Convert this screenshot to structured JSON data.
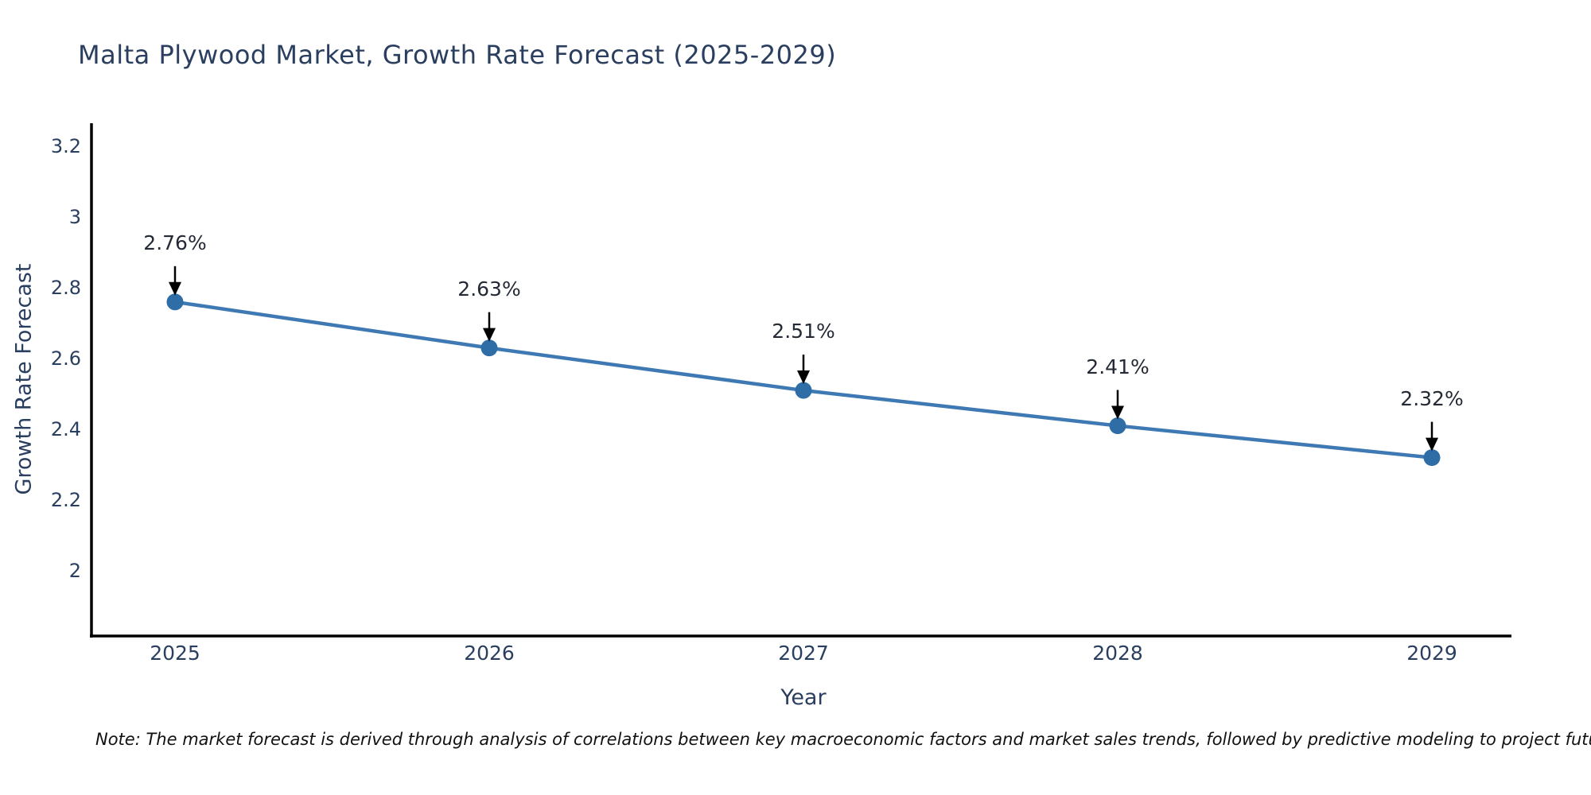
{
  "title": "Malta Plywood Market, Growth Rate Forecast (2025-2029)",
  "note": "Note: The market forecast is derived through analysis of correlations between key macroeconomic factors and market sales trends, followed by predictive modeling to project future sales",
  "chart_data": {
    "type": "line",
    "title": "Malta Plywood Market, Growth Rate Forecast (2025-2029)",
    "xlabel": "Year",
    "ylabel": "Growth Rate Forecast",
    "x": [
      2025,
      2026,
      2027,
      2028,
      2029
    ],
    "x_tick_labels": [
      "2025",
      "2026",
      "2027",
      "2028",
      "2029"
    ],
    "series": [
      {
        "name": "Growth Rate Forecast",
        "values": [
          2.76,
          2.63,
          2.51,
          2.41,
          2.32
        ]
      }
    ],
    "point_labels": [
      "2.76%",
      "2.63%",
      "2.51%",
      "2.41%",
      "2.32%"
    ],
    "ytick_labels": [
      "2",
      "2.2",
      "2.4",
      "2.6",
      "2.8",
      "3",
      "3.2"
    ],
    "yticks": [
      2,
      2.2,
      2.4,
      2.6,
      2.8,
      3,
      3.2
    ],
    "ylim": [
      1.82,
      3.27
    ],
    "grid": false,
    "legend": "none",
    "annotations": "black arrows pointing from each value label down to its data point",
    "colors": {
      "line": "#3e79b4",
      "marker": "#2e6da6",
      "axis": "#000000",
      "text": "#2a3f5f",
      "annotation": "#242a35",
      "note": "#111111",
      "background": "#ffffff"
    }
  }
}
